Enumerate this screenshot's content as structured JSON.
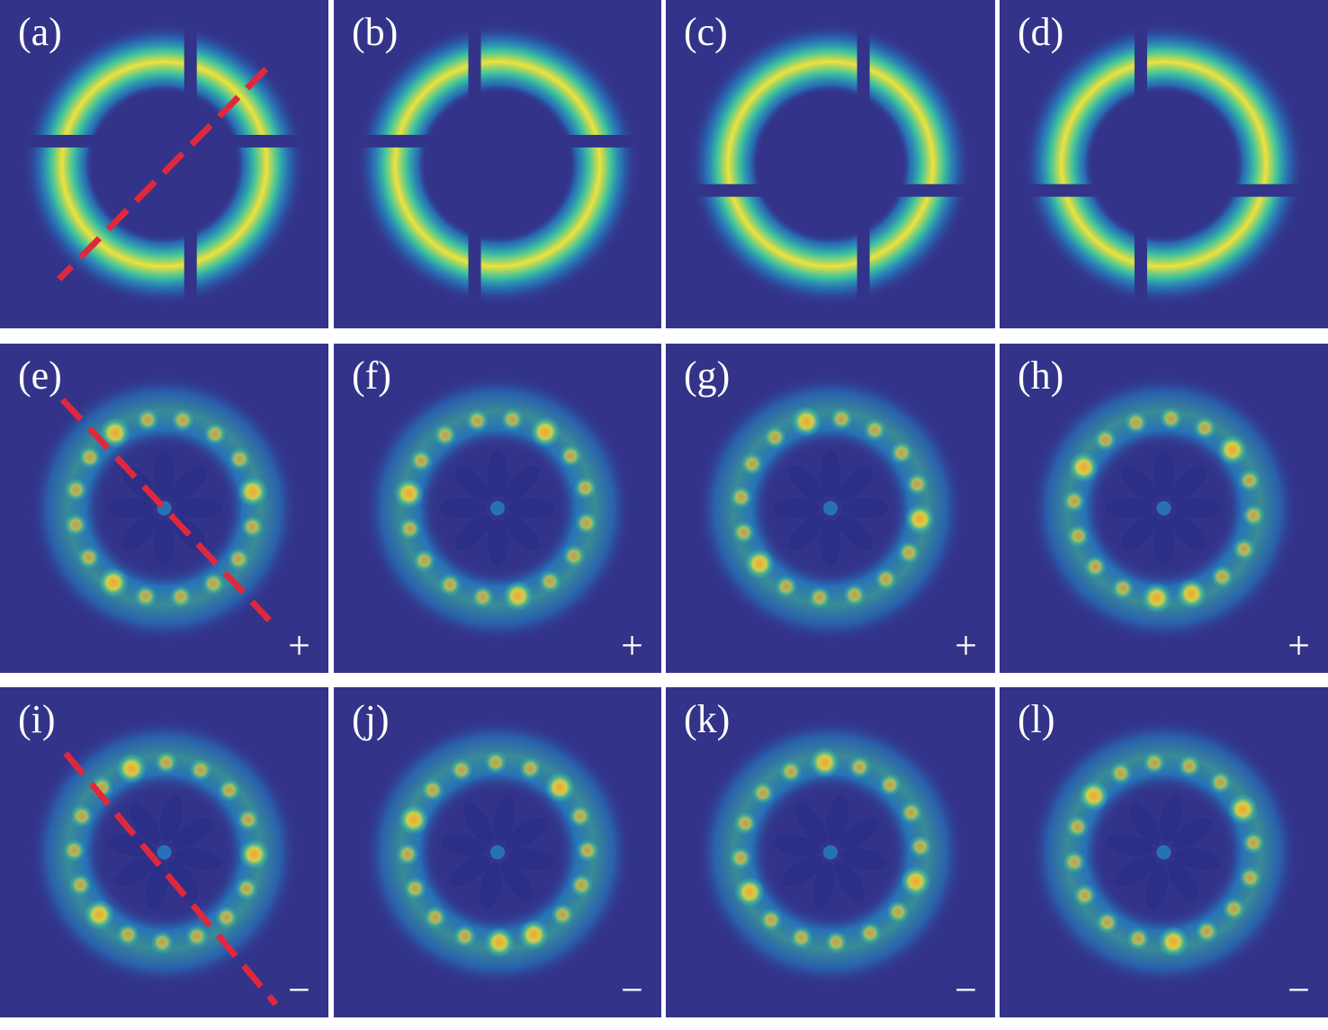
{
  "figure": {
    "rows": [
      {
        "row": "input",
        "panels": [
          {
            "label": "(a)",
            "sign": "",
            "dashed_line": true,
            "gap_offset": [
              0,
              0
            ]
          },
          {
            "label": "(b)",
            "sign": "",
            "dashed_line": false,
            "gap_offset": [
              0,
              0
            ]
          },
          {
            "label": "(c)",
            "sign": "",
            "dashed_line": false,
            "gap_offset": [
              0,
              0
            ]
          },
          {
            "label": "(d)",
            "sign": "",
            "dashed_line": false,
            "gap_offset": [
              0,
              0
            ]
          }
        ]
      },
      {
        "row": "plus",
        "panels": [
          {
            "label": "(e)",
            "sign": "+",
            "dashed_line": true
          },
          {
            "label": "(f)",
            "sign": "+",
            "dashed_line": false
          },
          {
            "label": "(g)",
            "sign": "+",
            "dashed_line": false
          },
          {
            "label": "(h)",
            "sign": "+",
            "dashed_line": false
          }
        ]
      },
      {
        "row": "minus",
        "panels": [
          {
            "label": "(i)",
            "sign": "−",
            "dashed_line": true
          },
          {
            "label": "(j)",
            "sign": "−",
            "dashed_line": false
          },
          {
            "label": "(k)",
            "sign": "−",
            "dashed_line": false
          },
          {
            "label": "(l)",
            "sign": "−",
            "dashed_line": false
          }
        ]
      }
    ],
    "colors": {
      "background": "#33338a",
      "ring_outer": "#1f9bd6",
      "ring_mid": "#3fd3a0",
      "ring_peak": "#f0e23a",
      "spot_peak": "#f6a030",
      "dashed_line": "#e0283c",
      "label": "#ffffff"
    }
  }
}
